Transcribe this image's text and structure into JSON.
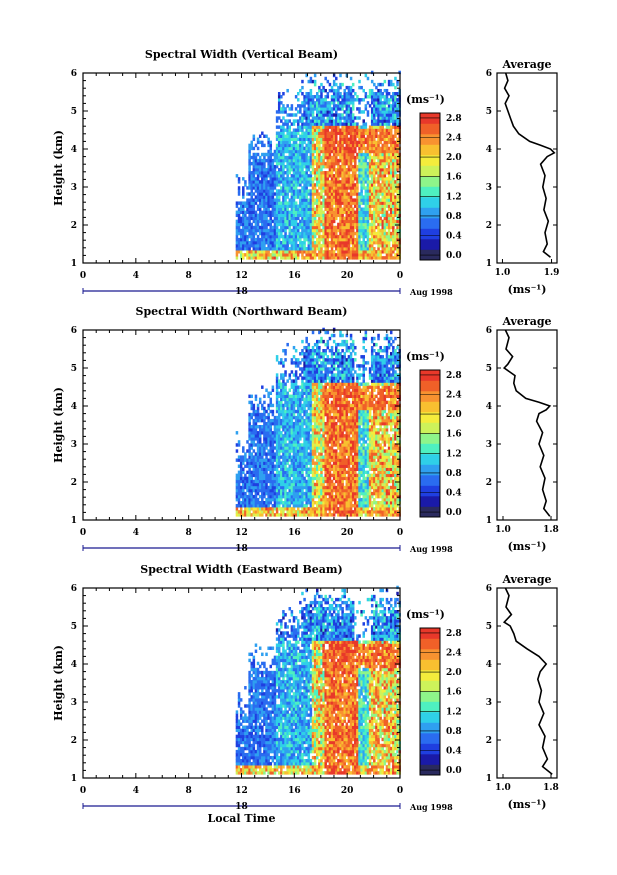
{
  "chart_data": [
    {
      "type": "heatmap",
      "title": "Spectral Width (Vertical Beam)",
      "ylabel": "Height (km)",
      "xlabel": "",
      "ylim": [
        1,
        6
      ],
      "y_ticks": [
        "1",
        "2",
        "3",
        "4",
        "5",
        "6"
      ],
      "x_ticks": [
        "0",
        "4",
        "8",
        "12",
        "16",
        "20",
        "0"
      ],
      "xlim_hours": [
        0,
        24
      ],
      "date_marker": "18",
      "date_label": "Aug 1998",
      "colorbar": {
        "unit": "(ms⁻¹)",
        "ticks": [
          "0.0",
          "0.4",
          "0.8",
          "1.2",
          "1.6",
          "2.0",
          "2.4",
          "2.8"
        ],
        "range": [
          0.0,
          3.0
        ]
      },
      "data_time_range_hours": [
        11.5,
        24
      ],
      "average": {
        "title": "Average",
        "xlabel": "(ms⁻¹)",
        "x_ticks": [
          "1.0",
          "1.9"
        ],
        "xlim": [
          0.9,
          2.0
        ],
        "height_km": [
          1.15,
          1.3,
          1.5,
          1.8,
          2.1,
          2.4,
          2.7,
          3.0,
          3.3,
          3.6,
          3.8,
          3.9,
          4.0,
          4.1,
          4.2,
          4.4,
          4.6,
          4.8,
          5.0,
          5.2,
          5.4,
          5.6,
          5.8,
          6.0
        ],
        "width": [
          1.88,
          1.75,
          1.82,
          1.78,
          1.84,
          1.76,
          1.8,
          1.74,
          1.78,
          1.7,
          1.82,
          1.95,
          1.88,
          1.7,
          1.5,
          1.3,
          1.2,
          1.15,
          1.1,
          1.05,
          1.12,
          1.04,
          1.1,
          1.06
        ]
      }
    },
    {
      "type": "heatmap",
      "title": "Spectral Width (Northward Beam)",
      "ylabel": "Height (km)",
      "xlabel": "",
      "ylim": [
        1,
        6
      ],
      "y_ticks": [
        "1",
        "2",
        "3",
        "4",
        "5",
        "6"
      ],
      "x_ticks": [
        "0",
        "4",
        "8",
        "12",
        "16",
        "20",
        "0"
      ],
      "xlim_hours": [
        0,
        24
      ],
      "date_marker": "18",
      "date_label": "Aug 1998",
      "colorbar": {
        "unit": "(ms⁻¹)",
        "ticks": [
          "0.0",
          "0.4",
          "0.8",
          "1.2",
          "1.6",
          "2.0",
          "2.4",
          "2.8"
        ],
        "range": [
          0.0,
          3.0
        ]
      },
      "data_time_range_hours": [
        11.5,
        24
      ],
      "average": {
        "title": "Average",
        "xlabel": "(ms⁻¹)",
        "x_ticks": [
          "1.0",
          "1.8"
        ],
        "xlim": [
          0.9,
          1.9
        ],
        "height_km": [
          1.1,
          1.3,
          1.5,
          1.8,
          2.1,
          2.4,
          2.7,
          3.0,
          3.3,
          3.6,
          3.8,
          3.9,
          4.0,
          4.1,
          4.2,
          4.4,
          4.6,
          4.8,
          5.0,
          5.1,
          5.3,
          5.5,
          5.8,
          6.0
        ],
        "width": [
          1.78,
          1.68,
          1.72,
          1.66,
          1.7,
          1.62,
          1.68,
          1.6,
          1.66,
          1.56,
          1.6,
          1.72,
          1.78,
          1.6,
          1.38,
          1.22,
          1.18,
          1.2,
          1.02,
          1.08,
          1.16,
          1.05,
          1.1,
          1.04
        ]
      }
    },
    {
      "type": "heatmap",
      "title": "Spectral Width (Eastward Beam)",
      "ylabel": "Height (km)",
      "xlabel": "Local Time",
      "ylim": [
        1,
        6
      ],
      "y_ticks": [
        "1",
        "2",
        "3",
        "4",
        "5",
        "6"
      ],
      "x_ticks": [
        "0",
        "4",
        "8",
        "12",
        "16",
        "20",
        "0"
      ],
      "xlim_hours": [
        0,
        24
      ],
      "date_marker": "18",
      "date_label": "Aug 1998",
      "colorbar": {
        "unit": "(ms⁻¹)",
        "ticks": [
          "0.0",
          "0.4",
          "0.8",
          "1.2",
          "1.6",
          "2.0",
          "2.4",
          "2.8"
        ],
        "range": [
          0.0,
          3.0
        ]
      },
      "data_time_range_hours": [
        11.5,
        24
      ],
      "average": {
        "title": "Average",
        "xlabel": "(ms⁻¹)",
        "x_ticks": [
          "1.0",
          "1.8"
        ],
        "xlim": [
          0.9,
          1.9
        ],
        "height_km": [
          1.1,
          1.3,
          1.5,
          1.8,
          2.1,
          2.4,
          2.7,
          3.0,
          3.3,
          3.6,
          3.8,
          4.0,
          4.2,
          4.4,
          4.6,
          4.8,
          5.0,
          5.1,
          5.3,
          5.5,
          5.8,
          6.0
        ],
        "width": [
          1.82,
          1.66,
          1.74,
          1.66,
          1.7,
          1.6,
          1.68,
          1.6,
          1.64,
          1.58,
          1.62,
          1.72,
          1.6,
          1.4,
          1.22,
          1.18,
          1.12,
          1.02,
          1.14,
          1.05,
          1.1,
          1.04
        ]
      }
    }
  ],
  "colors": {
    "scale": [
      "#2a2a5e",
      "#1a1aa8",
      "#1f3fe0",
      "#2a6cf0",
      "#2fa0f0",
      "#2fd0e8",
      "#4ef0c0",
      "#8ef58a",
      "#cdf25a",
      "#f4ec3c",
      "#f8c030",
      "#f89230",
      "#f06028",
      "#e8382a"
    ],
    "axis": "#000000",
    "date_bar": "#1a1a90"
  }
}
